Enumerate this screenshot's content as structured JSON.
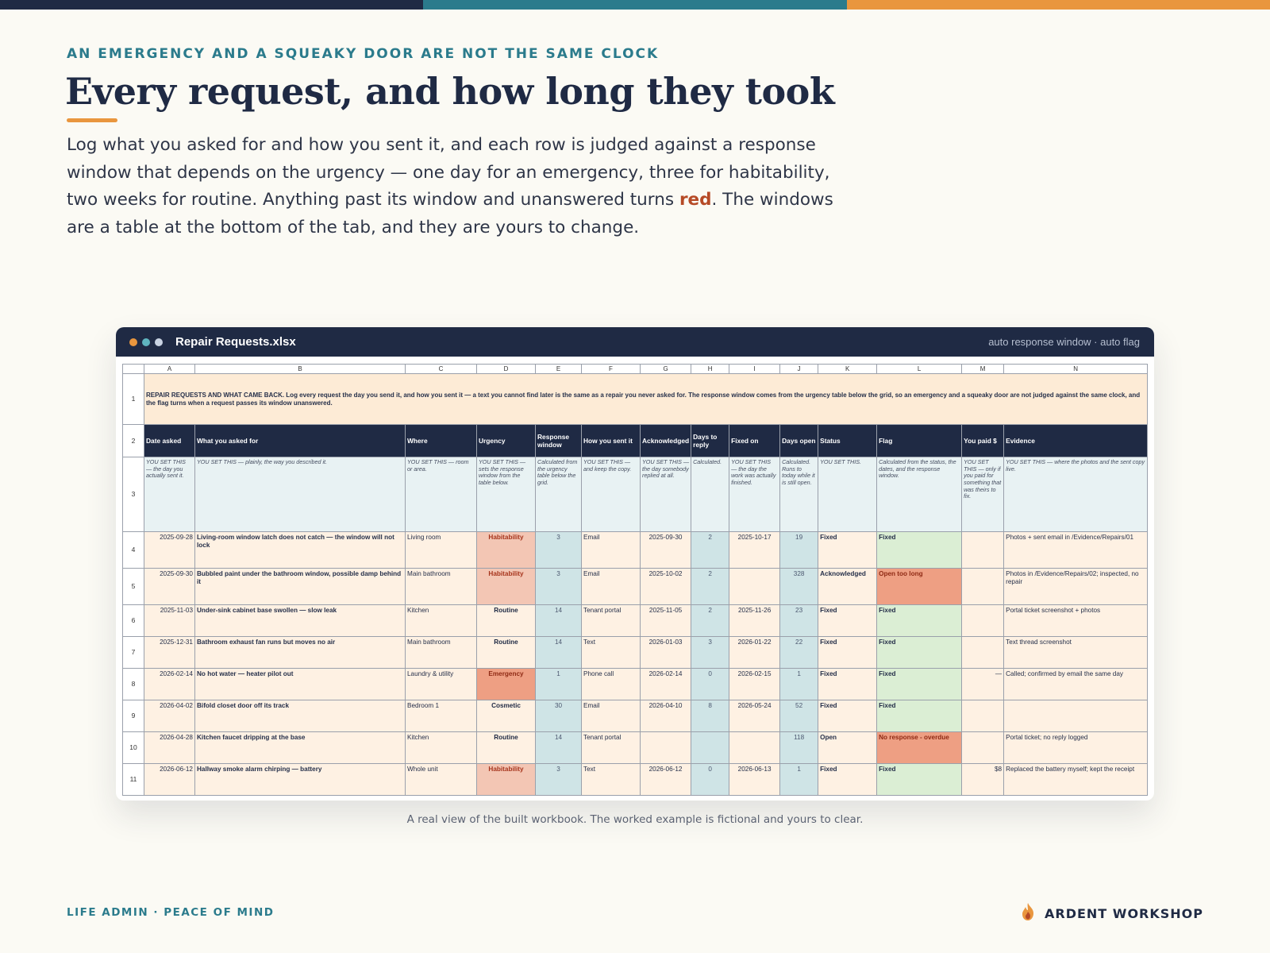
{
  "colors": {
    "navy": "#1f2a44",
    "teal": "#2b7b8c",
    "orange": "#e9963e",
    "red": "#b64a26",
    "background": "#fbfaf4"
  },
  "top_bar": [
    "#1f2a44",
    "#2b7b8c",
    "#e9963e"
  ],
  "hero": {
    "eyebrow": "AN EMERGENCY AND A SQUEAKY DOOR ARE NOT THE SAME CLOCK",
    "title": "Every request, and how long they took",
    "lede_before": "Log what you asked for and how you sent it, and each row is judged against a response window that depends on the urgency — one day for an emergency, three for habitability, two weeks for routine. Anything past its window and unanswered turns ",
    "lede_red": "red",
    "lede_after": ". The windows are a table at the bottom of the tab, and they are yours to change."
  },
  "window": {
    "dot_colors": [
      "#e9963e",
      "#5fb5c0",
      "#c9d3e2"
    ],
    "title": "Repair Requests.xlsx",
    "right_label": "auto response window · auto flag"
  },
  "sheet": {
    "columns": [
      "A",
      "B",
      "C",
      "D",
      "E",
      "F",
      "G",
      "H",
      "I",
      "J",
      "K",
      "L",
      "M",
      "N"
    ],
    "banner": "REPAIR REQUESTS AND WHAT CAME BACK. Log every request the day you send it, and how you sent it — a text you cannot find later is the same as a repair you never asked for. The response window comes from the urgency table below the grid, so an emergency and a squeaky door are not judged against the same clock, and the flag turns when a request passes its window unanswered.",
    "headers": [
      "Date asked",
      "What you asked for",
      "Where",
      "Urgency",
      "Response window",
      "How you sent it",
      "Acknowledged",
      "Days to reply",
      "Fixed on",
      "Days open",
      "Status",
      "Flag",
      "You paid $",
      "Evidence"
    ],
    "notes": [
      "YOU SET THIS — the day you actually sent it.",
      "YOU SET THIS — plainly, the way you described it.",
      "YOU SET THIS — room or area.",
      "YOU SET THIS — sets the response window from the table below.",
      "Calculated from the urgency table below the grid.",
      "YOU SET THIS — and keep the copy.",
      "YOU SET THIS — the day somebody replied at all.",
      "Calculated.",
      "YOU SET THIS — the day the work was actually finished.",
      "Calculated. Runs to today while it is still open.",
      "YOU SET THIS.",
      "Calculated from the status, the dates, and the response window.",
      "YOU SET THIS — only if you paid for something that was theirs to fix.",
      "YOU SET THIS — where the photos and the sent copy live."
    ],
    "rows": [
      {
        "num": "4",
        "date": "2025-09-28",
        "what": "Living-room window latch does not catch — the window will not lock",
        "where": "Living room",
        "urgency": "Habitability",
        "urg_class": "urg-hab",
        "window": "3",
        "how": "Email",
        "ack": "2025-09-30",
        "reply": "2",
        "fixed": "2025-10-17",
        "open": "19",
        "status": "Fixed",
        "flag": "Fixed",
        "flag_class": "flag-ok",
        "paid": "",
        "evidence": "Photos + sent email in /Evidence/Repairs/01"
      },
      {
        "num": "5",
        "date": "2025-09-30",
        "what": "Bubbled paint under the bathroom window, possible damp behind it",
        "where": "Main bathroom",
        "urgency": "Habitability",
        "urg_class": "urg-hab",
        "window": "3",
        "how": "Email",
        "ack": "2025-10-02",
        "reply": "2",
        "fixed": "",
        "open": "328",
        "status": "Acknowledged",
        "flag": "Open too long",
        "flag_class": "flag-bad",
        "paid": "",
        "evidence": "Photos in /Evidence/Repairs/02; inspected, no repair"
      },
      {
        "num": "6",
        "date": "2025-11-03",
        "what": "Under-sink cabinet base swollen — slow leak",
        "where": "Kitchen",
        "urgency": "Routine",
        "urg_class": "urg-rout",
        "window": "14",
        "how": "Tenant portal",
        "ack": "2025-11-05",
        "reply": "2",
        "fixed": "2025-11-26",
        "open": "23",
        "status": "Fixed",
        "flag": "Fixed",
        "flag_class": "flag-ok",
        "paid": "",
        "evidence": "Portal ticket screenshot + photos"
      },
      {
        "num": "7",
        "date": "2025-12-31",
        "what": "Bathroom exhaust fan runs but moves no air",
        "where": "Main bathroom",
        "urgency": "Routine",
        "urg_class": "urg-rout",
        "window": "14",
        "how": "Text",
        "ack": "2026-01-03",
        "reply": "3",
        "fixed": "2026-01-22",
        "open": "22",
        "status": "Fixed",
        "flag": "Fixed",
        "flag_class": "flag-ok",
        "paid": "",
        "evidence": "Text thread screenshot"
      },
      {
        "num": "8",
        "date": "2026-02-14",
        "what": "No hot water — heater pilot out",
        "where": "Laundry & utility",
        "urgency": "Emergency",
        "urg_class": "urg-emg",
        "window": "1",
        "how": "Phone call",
        "ack": "2026-02-14",
        "reply": "0",
        "fixed": "2026-02-15",
        "open": "1",
        "status": "Fixed",
        "flag": "Fixed",
        "flag_class": "flag-ok",
        "paid": "—",
        "evidence": "Called; confirmed by email the same day"
      },
      {
        "num": "9",
        "date": "2026-04-02",
        "what": "Bifold closet door off its track",
        "where": "Bedroom 1",
        "urgency": "Cosmetic",
        "urg_class": "urg-cos",
        "window": "30",
        "how": "Email",
        "ack": "2026-04-10",
        "reply": "8",
        "fixed": "2026-05-24",
        "open": "52",
        "status": "Fixed",
        "flag": "Fixed",
        "flag_class": "flag-ok",
        "paid": "",
        "evidence": ""
      },
      {
        "num": "10",
        "date": "2026-04-28",
        "what": "Kitchen faucet dripping at the base",
        "where": "Kitchen",
        "urgency": "Routine",
        "urg_class": "urg-rout",
        "window": "14",
        "how": "Tenant portal",
        "ack": "",
        "reply": "",
        "fixed": "",
        "open": "118",
        "status": "Open",
        "flag": "No response - overdue",
        "flag_class": "flag-bad",
        "paid": "",
        "evidence": "Portal ticket; no reply logged"
      },
      {
        "num": "11",
        "date": "2026-06-12",
        "what": "Hallway smoke alarm chirping — battery",
        "where": "Whole unit",
        "urgency": "Habitability",
        "urg_class": "urg-hab",
        "window": "3",
        "how": "Text",
        "ack": "2026-06-12",
        "reply": "0",
        "fixed": "2026-06-13",
        "open": "1",
        "status": "Fixed",
        "flag": "Fixed",
        "flag_class": "flag-ok",
        "paid": "$8",
        "evidence": "Replaced the battery myself; kept the receipt"
      }
    ]
  },
  "caption": "A real view of the built workbook. The worked example is fictional and yours to clear.",
  "footer": {
    "left": "LIFE ADMIN · PEACE OF MIND",
    "brand": "ARDENT WORKSHOP",
    "brand_icon": "flame-icon"
  }
}
